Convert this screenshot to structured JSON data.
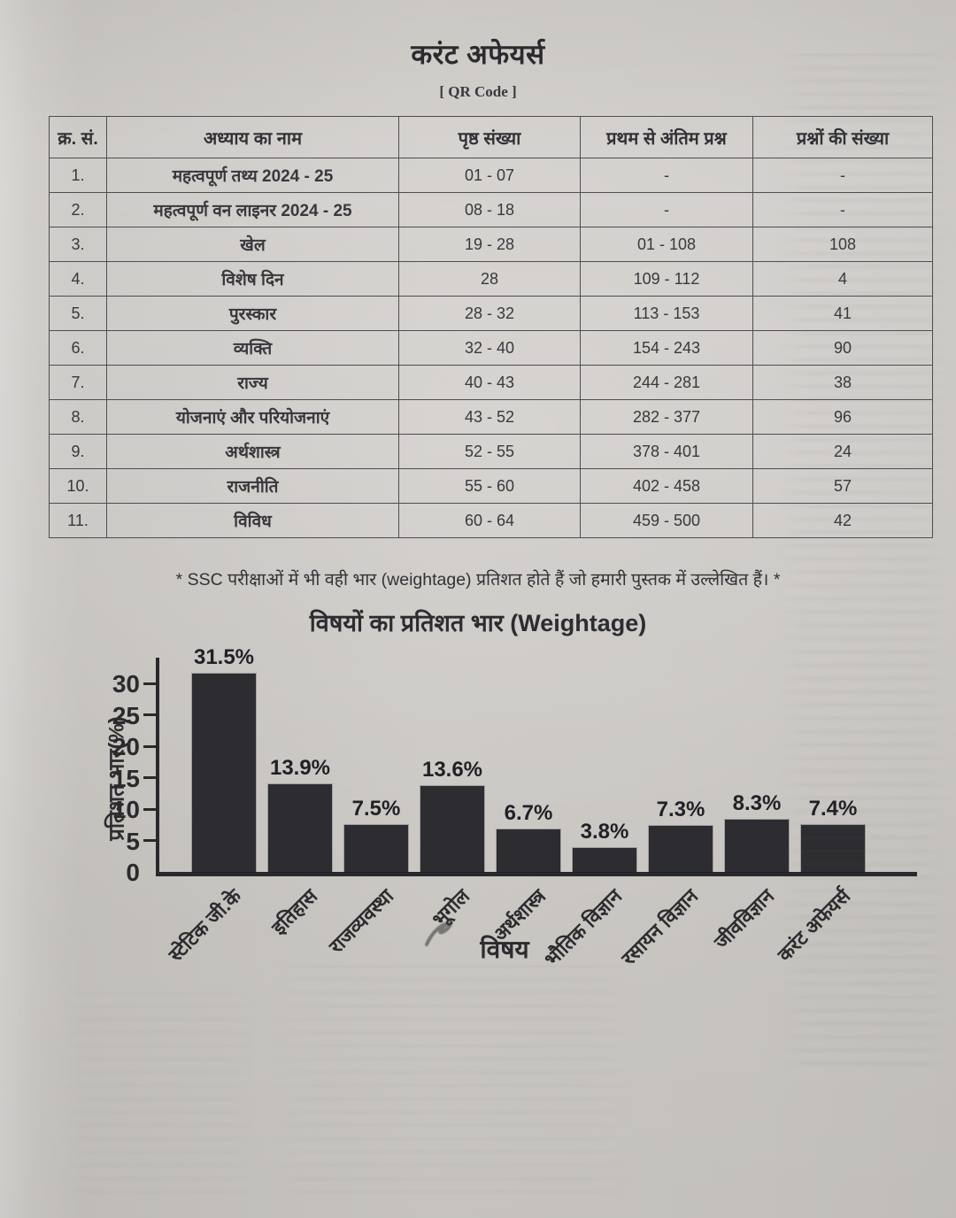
{
  "page": {
    "title": "करंट अफेयर्स",
    "qr_label": "[ QR Code ]",
    "note": "* SSC परीक्षाओं में भी वही भार (weightage) प्रतिशत होते हैं जो हमारी पुस्तक में उल्लेखित हैं। *"
  },
  "table": {
    "headers": [
      "क्र. सं.",
      "अध्याय का नाम",
      "पृष्ठ संख्या",
      "प्रथम से अंतिम प्रश्न",
      "प्रश्नों की संख्या"
    ],
    "rows": [
      [
        "1.",
        "महत्वपूर्ण तथ्य 2024 - 25",
        "01 - 07",
        "-",
        "-"
      ],
      [
        "2.",
        "महत्वपूर्ण वन लाइनर 2024 - 25",
        "08 - 18",
        "-",
        "-"
      ],
      [
        "3.",
        "खेल",
        "19 - 28",
        "01 - 108",
        "108"
      ],
      [
        "4.",
        "विशेष दिन",
        "28",
        "109 - 112",
        "4"
      ],
      [
        "5.",
        "पुरस्कार",
        "28 - 32",
        "113 - 153",
        "41"
      ],
      [
        "6.",
        "व्यक्ति",
        "32 - 40",
        "154 - 243",
        "90"
      ],
      [
        "7.",
        "राज्य",
        "40 - 43",
        "244 - 281",
        "38"
      ],
      [
        "8.",
        "योजनाएं और परियोजनाएं",
        "43 - 52",
        "282 - 377",
        "96"
      ],
      [
        "9.",
        "अर्थशास्त्र",
        "52 - 55",
        "378 - 401",
        "24"
      ],
      [
        "10.",
        "राजनीति",
        "55 - 60",
        "402 - 458",
        "57"
      ],
      [
        "11.",
        "विविध",
        "60 - 64",
        "459 - 500",
        "42"
      ]
    ]
  },
  "chart_data": {
    "type": "bar",
    "title": "विषयों का प्रतिशत भार (Weightage)",
    "categories": [
      "स्टेटिक जी.के",
      "इतिहास",
      "राजव्यवस्था",
      "भूगोल",
      "अर्थशास्त्र",
      "भौतिक विज्ञान",
      "रसायन विज्ञान",
      "जीवविज्ञान",
      "करंट अफेयर्स"
    ],
    "values": [
      31.5,
      13.9,
      7.5,
      13.6,
      6.7,
      3.8,
      7.3,
      8.3,
      7.4
    ],
    "labels": [
      "31.5%",
      "13.9%",
      "7.5%",
      "13.6%",
      "6.7%",
      "3.8%",
      "7.3%",
      "8.3%",
      "7.4%"
    ],
    "xlabel": "विषय",
    "ylabel": "प्रतिशत भार(%)",
    "yticks": [
      0,
      5,
      10,
      15,
      20,
      25,
      30
    ],
    "ylim": [
      0,
      33
    ],
    "grid": false,
    "legend": "none",
    "bar_color": "#2e2d31"
  }
}
